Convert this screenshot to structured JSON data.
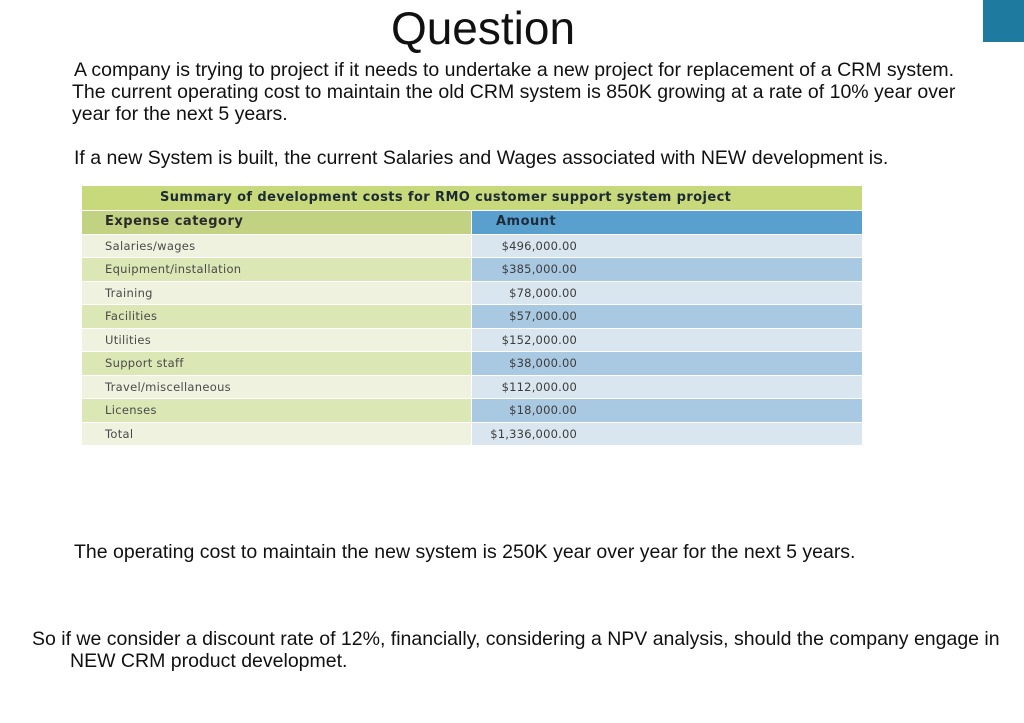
{
  "slide": {
    "title": "Question",
    "paragraph1": "A company is trying to project if it needs to undertake a new project for replacement of a CRM system. The current operating cost to maintain the old CRM system is 850K growing at a rate of 10% year over year for the next 5 years.",
    "paragraph2": "If a new System is built, the current Salaries and Wages associated with NEW development is.",
    "paragraph3": "The operating cost to maintain the new system is 250K year over year for the next 5 years.",
    "paragraph4": "So if we consider a discount rate of 12%, financially, considering a NPV analysis, should the company engage in NEW CRM product developmet.",
    "accent_color": "#1f7aa0"
  },
  "table": {
    "caption": "Summary of development costs for RMO customer support system project",
    "header_category": "Expense category",
    "header_amount": "Amount",
    "rows": [
      {
        "category": "Salaries/wages",
        "amount": "$496,000.00"
      },
      {
        "category": "Equipment/installation",
        "amount": "$385,000.00"
      },
      {
        "category": "Training",
        "amount": "$78,000.00"
      },
      {
        "category": "Facilities",
        "amount": "$57,000.00"
      },
      {
        "category": "Utilities",
        "amount": "$152,000.00"
      },
      {
        "category": "Support staff",
        "amount": "$38,000.00"
      },
      {
        "category": "Travel/miscellaneous",
        "amount": "$112,000.00"
      },
      {
        "category": "Licenses",
        "amount": "$18,000.00"
      },
      {
        "category": "Total",
        "amount": "$1,336,000.00"
      }
    ],
    "colors": {
      "caption_bg": "#c7d97b",
      "header_amount_bg": "#5aa0cf"
    }
  }
}
